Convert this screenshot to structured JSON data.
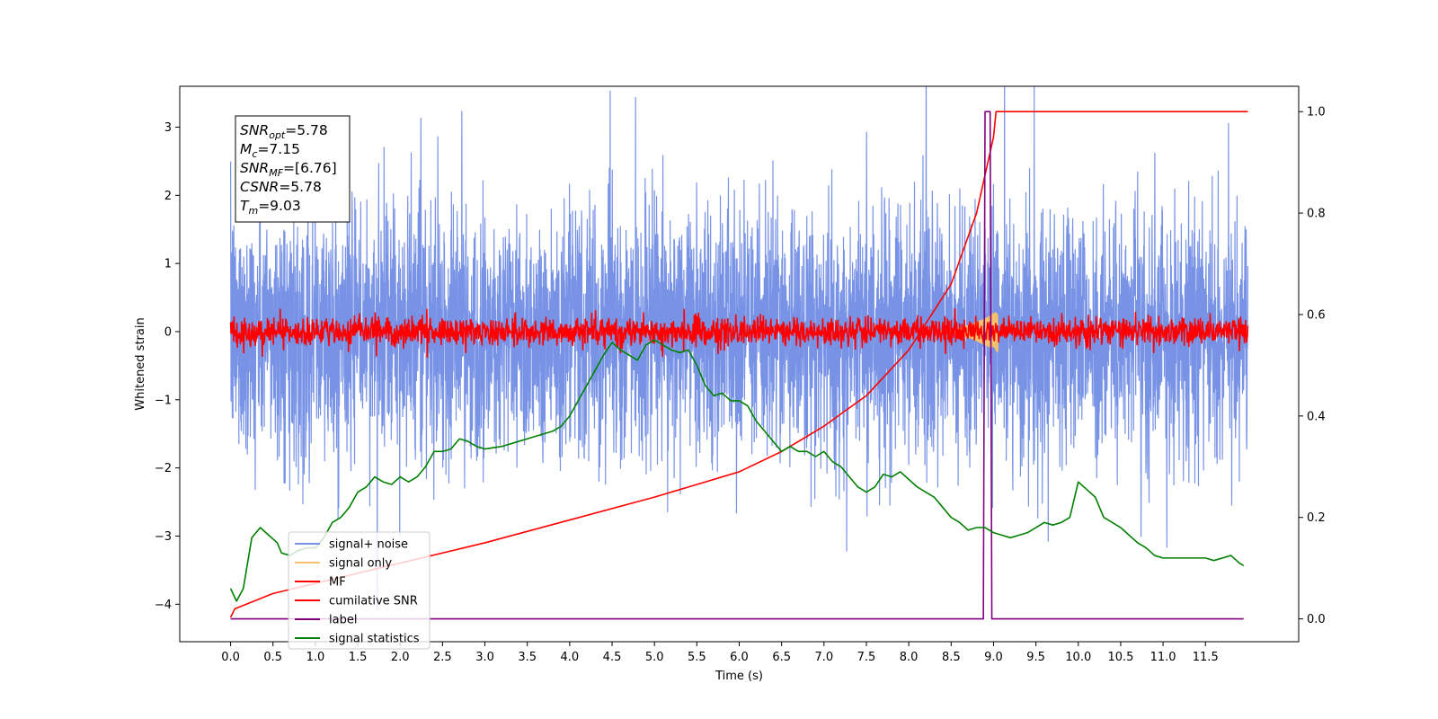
{
  "chart_data": {
    "type": "line",
    "xlabel": "Time (s)",
    "ylabel": "Whitened strain",
    "xlim": [
      -0.6,
      12.6
    ],
    "ylim_left": [
      -4.55,
      3.6
    ],
    "ylim_right": [
      -0.045,
      1.05
    ],
    "x_ticks": [
      "0.0",
      "0.5",
      "1.0",
      "1.5",
      "2.0",
      "2.5",
      "3.0",
      "3.5",
      "4.0",
      "4.5",
      "5.0",
      "5.5",
      "6.0",
      "6.5",
      "7.0",
      "7.5",
      "8.0",
      "8.5",
      "9.0",
      "9.5",
      "10.0",
      "10.5",
      "11.0",
      "11.5"
    ],
    "y_ticks_left": [
      "3",
      "2",
      "1",
      "0",
      "−1",
      "−2",
      "−3",
      "−4"
    ],
    "y_ticks_right": [
      "1.0",
      "0.8",
      "0.6",
      "0.4",
      "0.2",
      "0.0"
    ],
    "legend_position": "lower-left",
    "annotation": [
      {
        "base": "SNR",
        "sub": "opt",
        "rest": "=5.78"
      },
      {
        "base": "M",
        "sub": "c",
        "rest": "=7.15"
      },
      {
        "base": "SNR",
        "sub": "MF",
        "rest": "=[6.76]"
      },
      {
        "base": "CSNR",
        "sub": "",
        "rest": "=5.78"
      },
      {
        "base": "T",
        "sub": "m",
        "rest": "=9.03"
      }
    ],
    "series": [
      {
        "name": "signal+ noise",
        "color": "#7893e6",
        "axis": "left",
        "kind": "noise",
        "sigma": 0.9,
        "range": [
          0,
          12
        ]
      },
      {
        "name": "signal only",
        "color": "#f5c26b",
        "axis": "left",
        "kind": "chirp",
        "range": [
          8.3,
          9.05
        ],
        "peak_amplitude": 0.3
      },
      {
        "name": "MF",
        "color": "#ff0000",
        "axis": "left",
        "kind": "noise",
        "sigma": 0.1,
        "range": [
          0,
          12
        ]
      },
      {
        "name": "cumilative SNR",
        "color": "#ff0000",
        "axis": "right",
        "x": [
          0.0,
          0.05,
          0.5,
          1.0,
          2.0,
          3.0,
          4.0,
          5.0,
          6.0,
          6.5,
          7.0,
          7.5,
          8.0,
          8.5,
          8.8,
          9.0,
          9.03,
          12.0
        ],
        "y": [
          0.003,
          0.02,
          0.05,
          0.07,
          0.11,
          0.15,
          0.195,
          0.24,
          0.29,
          0.33,
          0.38,
          0.44,
          0.53,
          0.66,
          0.8,
          0.95,
          1.0,
          1.0
        ]
      },
      {
        "name": "label",
        "color": "#800080",
        "axis": "right",
        "x": [
          0.0,
          8.88,
          8.9,
          8.96,
          8.98,
          9.0,
          9.02,
          9.05,
          11.95
        ],
        "y": [
          0.0,
          0.0,
          1.0,
          1.0,
          0.0,
          0.0,
          0.0,
          0.0,
          0.0
        ]
      },
      {
        "name": "signal statistics",
        "color": "#008000",
        "axis": "right",
        "x": [
          0.0,
          0.07,
          0.15,
          0.25,
          0.35,
          0.45,
          0.55,
          0.6,
          0.7,
          0.8,
          0.9,
          1.0,
          1.1,
          1.2,
          1.3,
          1.4,
          1.5,
          1.6,
          1.7,
          1.8,
          1.9,
          2.0,
          2.1,
          2.2,
          2.3,
          2.4,
          2.5,
          2.6,
          2.7,
          2.8,
          2.9,
          3.0,
          3.2,
          3.4,
          3.5,
          3.6,
          3.8,
          3.9,
          4.0,
          4.1,
          4.2,
          4.3,
          4.4,
          4.5,
          4.6,
          4.7,
          4.8,
          4.9,
          5.0,
          5.1,
          5.2,
          5.3,
          5.4,
          5.5,
          5.6,
          5.7,
          5.8,
          5.9,
          6.0,
          6.1,
          6.2,
          6.3,
          6.4,
          6.5,
          6.6,
          6.7,
          6.8,
          6.9,
          7.0,
          7.1,
          7.2,
          7.3,
          7.4,
          7.5,
          7.6,
          7.7,
          7.8,
          7.9,
          8.0,
          8.1,
          8.2,
          8.3,
          8.4,
          8.5,
          8.6,
          8.7,
          8.8,
          8.9,
          9.0,
          9.1,
          9.2,
          9.3,
          9.4,
          9.5,
          9.6,
          9.7,
          9.8,
          9.9,
          10.0,
          10.1,
          10.2,
          10.3,
          10.4,
          10.5,
          10.6,
          10.7,
          10.8,
          10.9,
          11.0,
          11.2,
          11.4,
          11.5,
          11.6,
          11.7,
          11.8,
          11.9,
          11.95
        ],
        "y": [
          0.06,
          0.035,
          0.06,
          0.16,
          0.18,
          0.165,
          0.15,
          0.13,
          0.125,
          0.135,
          0.14,
          0.14,
          0.16,
          0.19,
          0.2,
          0.22,
          0.25,
          0.26,
          0.28,
          0.27,
          0.265,
          0.28,
          0.27,
          0.28,
          0.3,
          0.33,
          0.33,
          0.335,
          0.355,
          0.35,
          0.34,
          0.335,
          0.34,
          0.35,
          0.355,
          0.36,
          0.37,
          0.38,
          0.4,
          0.43,
          0.46,
          0.49,
          0.52,
          0.545,
          0.53,
          0.52,
          0.51,
          0.54,
          0.55,
          0.54,
          0.53,
          0.525,
          0.53,
          0.5,
          0.46,
          0.44,
          0.445,
          0.43,
          0.43,
          0.42,
          0.39,
          0.37,
          0.35,
          0.33,
          0.34,
          0.33,
          0.33,
          0.32,
          0.33,
          0.31,
          0.3,
          0.28,
          0.26,
          0.25,
          0.26,
          0.285,
          0.28,
          0.29,
          0.275,
          0.26,
          0.25,
          0.24,
          0.22,
          0.2,
          0.19,
          0.175,
          0.18,
          0.18,
          0.17,
          0.165,
          0.16,
          0.165,
          0.17,
          0.18,
          0.19,
          0.185,
          0.19,
          0.2,
          0.27,
          0.255,
          0.24,
          0.2,
          0.19,
          0.18,
          0.165,
          0.15,
          0.14,
          0.125,
          0.12,
          0.12,
          0.12,
          0.12,
          0.115,
          0.12,
          0.125,
          0.11,
          0.105
        ]
      }
    ]
  }
}
